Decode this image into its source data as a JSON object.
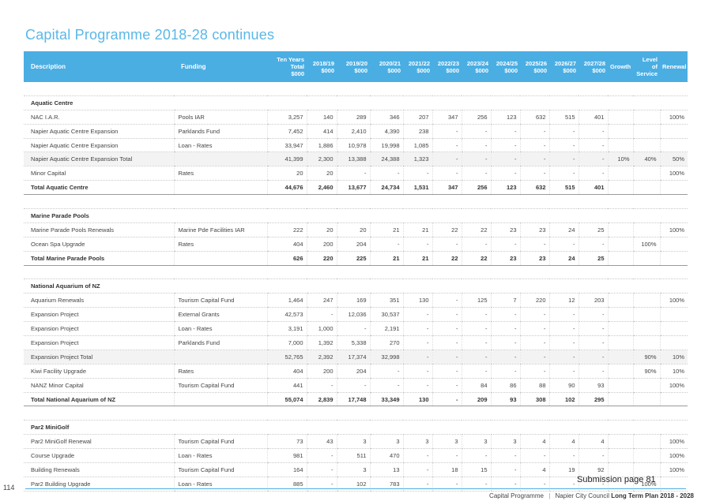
{
  "page": {
    "title": "Capital Programme 2018-28 continues",
    "submission": "Submission page 81",
    "page_number": "114",
    "footer": {
      "section": "Capital Programme",
      "separator": "|",
      "org": "Napier City Council",
      "plan": "Long Term Plan 2018 - 2028"
    }
  },
  "columns": [
    "Description",
    "Funding",
    "Ten Years\nTotal\n$000",
    "2018/19\n$000",
    "2019/20\n$000",
    "2020/21\n$000",
    "2021/22\n$000",
    "2022/23\n$000",
    "2023/24\n$000",
    "2024/25\n$000",
    "2025/26\n$000",
    "2026/27\n$000",
    "2027/28\n$000",
    "Growth",
    "Level of\nService",
    "Renewal"
  ],
  "rows": [
    {
      "type": "spacer",
      "cells": [
        "",
        "",
        "",
        "",
        "",
        "",
        "",
        "",
        "",
        "",
        "",
        "",
        "",
        "",
        "",
        ""
      ]
    },
    {
      "type": "section",
      "cells": [
        "Aquatic Centre",
        "",
        "",
        "",
        "",
        "",
        "",
        "",
        "",
        "",
        "",
        "",
        "",
        "",
        "",
        ""
      ]
    },
    {
      "type": "data",
      "cells": [
        "NAC I.A.R.",
        "Pools IAR",
        "3,257",
        "140",
        "289",
        "346",
        "207",
        "347",
        "256",
        "123",
        "632",
        "515",
        "401",
        "",
        "",
        "100%"
      ]
    },
    {
      "type": "data",
      "cells": [
        "Napier Aquatic Centre Expansion",
        "Parklands Fund",
        "7,452",
        "414",
        "2,410",
        "4,390",
        "238",
        "-",
        "-",
        "-",
        "-",
        "-",
        "-",
        "",
        "",
        ""
      ]
    },
    {
      "type": "data",
      "cells": [
        "Napier Aquatic Centre Expansion",
        "Loan - Rates",
        "33,947",
        "1,886",
        "10,978",
        "19,998",
        "1,085",
        "-",
        "-",
        "-",
        "-",
        "-",
        "-",
        "",
        "",
        ""
      ]
    },
    {
      "type": "subtotal",
      "cells": [
        "Napier Aquatic Centre Expansion Total",
        "",
        "41,399",
        "2,300",
        "13,388",
        "24,388",
        "1,323",
        "-",
        "-",
        "-",
        "-",
        "-",
        "-",
        "10%",
        "40%",
        "50%"
      ]
    },
    {
      "type": "data",
      "cells": [
        "Minor Capital",
        "Rates",
        "20",
        "20",
        "-",
        "-",
        "-",
        "-",
        "-",
        "-",
        "-",
        "-",
        "-",
        "",
        "",
        "100%"
      ]
    },
    {
      "type": "total",
      "cells": [
        "Total Aquatic Centre",
        "",
        "44,676",
        "2,460",
        "13,677",
        "24,734",
        "1,531",
        "347",
        "256",
        "123",
        "632",
        "515",
        "401",
        "",
        "",
        ""
      ]
    },
    {
      "type": "spacer",
      "cells": [
        "",
        "",
        "",
        "",
        "",
        "",
        "",
        "",
        "",
        "",
        "",
        "",
        "",
        "",
        "",
        ""
      ]
    },
    {
      "type": "section",
      "cells": [
        "Marine Parade Pools",
        "",
        "",
        "",
        "",
        "",
        "",
        "",
        "",
        "",
        "",
        "",
        "",
        "",
        "",
        ""
      ]
    },
    {
      "type": "data",
      "cells": [
        "Marine Parade Pools Renewals",
        "Marine Pde Facilities IAR",
        "222",
        "20",
        "20",
        "21",
        "21",
        "22",
        "22",
        "23",
        "23",
        "24",
        "25",
        "",
        "",
        "100%"
      ]
    },
    {
      "type": "data",
      "cells": [
        "Ocean Spa Upgrade",
        "Rates",
        "404",
        "200",
        "204",
        "-",
        "-",
        "-",
        "-",
        "-",
        "-",
        "-",
        "-",
        "",
        "100%",
        ""
      ]
    },
    {
      "type": "total",
      "cells": [
        "Total Marine Parade Pools",
        "",
        "626",
        "220",
        "225",
        "21",
        "21",
        "22",
        "22",
        "23",
        "23",
        "24",
        "25",
        "",
        "",
        ""
      ]
    },
    {
      "type": "spacer",
      "cells": [
        "",
        "",
        "",
        "",
        "",
        "",
        "",
        "",
        "",
        "",
        "",
        "",
        "",
        "",
        "",
        ""
      ]
    },
    {
      "type": "section",
      "cells": [
        "National Aquarium of NZ",
        "",
        "",
        "",
        "",
        "",
        "",
        "",
        "",
        "",
        "",
        "",
        "",
        "",
        "",
        ""
      ]
    },
    {
      "type": "data",
      "cells": [
        "Aquarium Renewals",
        "Tourism Capital Fund",
        "1,464",
        "247",
        "169",
        "351",
        "130",
        "-",
        "125",
        "7",
        "220",
        "12",
        "203",
        "",
        "",
        "100%"
      ]
    },
    {
      "type": "data",
      "cells": [
        "Expansion Project",
        "External Grants",
        "42,573",
        "-",
        "12,036",
        "30,537",
        "-",
        "-",
        "-",
        "-",
        "-",
        "-",
        "-",
        "",
        "",
        ""
      ]
    },
    {
      "type": "data",
      "cells": [
        "Expansion Project",
        "Loan - Rates",
        "3,191",
        "1,000",
        "-",
        "2,191",
        "-",
        "-",
        "-",
        "-",
        "-",
        "-",
        "-",
        "",
        "",
        ""
      ]
    },
    {
      "type": "data",
      "cells": [
        "Expansion Project",
        "Parklands Fund",
        "7,000",
        "1,392",
        "5,338",
        "270",
        "-",
        "-",
        "-",
        "-",
        "-",
        "-",
        "-",
        "",
        "",
        ""
      ]
    },
    {
      "type": "subtotal",
      "cells": [
        "Expansion Project Total",
        "",
        "52,765",
        "2,392",
        "17,374",
        "32,998",
        "-",
        "-",
        "-",
        "-",
        "-",
        "-",
        "-",
        "",
        "90%",
        "10%"
      ]
    },
    {
      "type": "data",
      "cells": [
        "Kiwi Facility Upgrade",
        "Rates",
        "404",
        "200",
        "204",
        "-",
        "-",
        "-",
        "-",
        "-",
        "-",
        "-",
        "-",
        "",
        "90%",
        "10%"
      ]
    },
    {
      "type": "data",
      "cells": [
        "NANZ Minor Capital",
        "Tourism Capital Fund",
        "441",
        "-",
        "-",
        "-",
        "-",
        "-",
        "84",
        "86",
        "88",
        "90",
        "93",
        "",
        "",
        "100%"
      ]
    },
    {
      "type": "total",
      "cells": [
        "Total National Aquarium of NZ",
        "",
        "55,074",
        "2,839",
        "17,748",
        "33,349",
        "130",
        "-",
        "209",
        "93",
        "308",
        "102",
        "295",
        "",
        "",
        ""
      ]
    },
    {
      "type": "spacer",
      "cells": [
        "",
        "",
        "",
        "",
        "",
        "",
        "",
        "",
        "",
        "",
        "",
        "",
        "",
        "",
        "",
        ""
      ]
    },
    {
      "type": "section",
      "cells": [
        "Par2 MiniGolf",
        "",
        "",
        "",
        "",
        "",
        "",
        "",
        "",
        "",
        "",
        "",
        "",
        "",
        "",
        ""
      ]
    },
    {
      "type": "data",
      "cells": [
        "Par2 MiniGolf Renewal",
        "Tourism Capital Fund",
        "73",
        "43",
        "3",
        "3",
        "3",
        "3",
        "3",
        "3",
        "4",
        "4",
        "4",
        "",
        "",
        "100%"
      ]
    },
    {
      "type": "data",
      "cells": [
        "Course Upgrade",
        "Loan - Rates",
        "981",
        "-",
        "511",
        "470",
        "-",
        "-",
        "-",
        "-",
        "-",
        "-",
        "-",
        "",
        "",
        "100%"
      ]
    },
    {
      "type": "data",
      "cells": [
        "Building Renewals",
        "Tourism Capital Fund",
        "164",
        "-",
        "3",
        "13",
        "-",
        "18",
        "15",
        "-",
        "4",
        "19",
        "92",
        "",
        "",
        "100%"
      ]
    },
    {
      "type": "data",
      "cells": [
        "Par2 Building Upgrade",
        "Loan - Rates",
        "885",
        "-",
        "102",
        "783",
        "-",
        "-",
        "-",
        "-",
        "-",
        "-",
        "-",
        "",
        "100%",
        ""
      ]
    }
  ]
}
